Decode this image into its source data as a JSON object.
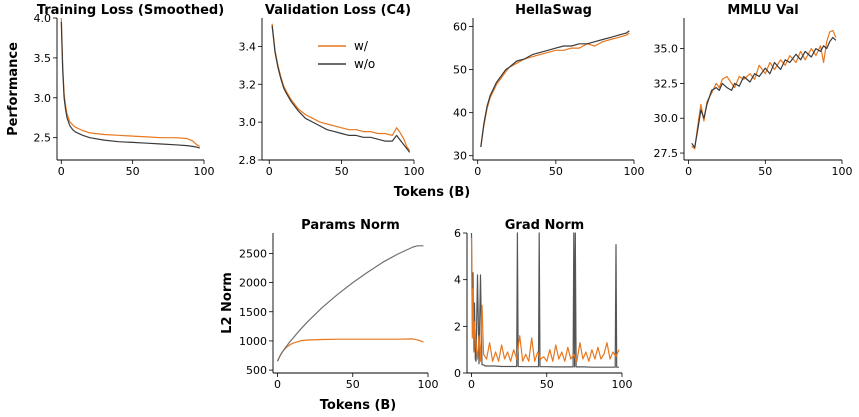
{
  "figure": {
    "xlabel_top": "Tokens (B)",
    "ylabel_top": "Performance",
    "xlabel_bottom": "Tokens (B)",
    "ylabel_bottom": "L2 Norm",
    "colors": {
      "w": "#e8771e",
      "wo": "#3a3a3a",
      "wo_light": "#707070"
    },
    "legend": {
      "location": "upper-right of Validation Loss panel",
      "entries": [
        "w/",
        "w/o"
      ]
    }
  },
  "chart_data": [
    {
      "id": "train",
      "type": "line",
      "title": "Training Loss (Smoothed)",
      "xlim": [
        -3,
        100
      ],
      "ylim": [
        2.22,
        4.0
      ],
      "xticks": [
        0,
        50,
        100
      ],
      "yticks": [
        2.5,
        3.0,
        3.5,
        4.0
      ],
      "ytick_labels": [
        "2.5",
        "3.0",
        "3.5",
        "4.0"
      ],
      "series": [
        {
          "name": "w/",
          "color": "#e8771e",
          "x": [
            0,
            1,
            2,
            3,
            4,
            6,
            8,
            10,
            15,
            20,
            30,
            40,
            50,
            60,
            70,
            80,
            88,
            92,
            95,
            97
          ],
          "values": [
            4.0,
            3.4,
            3.05,
            2.9,
            2.8,
            2.7,
            2.66,
            2.63,
            2.59,
            2.56,
            2.54,
            2.53,
            2.52,
            2.51,
            2.5,
            2.5,
            2.49,
            2.46,
            2.41,
            2.39
          ]
        },
        {
          "name": "w/o",
          "color": "#3a3a3a",
          "x": [
            0,
            1,
            2,
            3,
            4,
            6,
            8,
            10,
            15,
            20,
            30,
            40,
            50,
            60,
            70,
            80,
            88,
            92,
            95,
            97
          ],
          "values": [
            3.95,
            3.35,
            3.0,
            2.85,
            2.75,
            2.65,
            2.6,
            2.57,
            2.53,
            2.5,
            2.47,
            2.45,
            2.44,
            2.43,
            2.42,
            2.41,
            2.4,
            2.39,
            2.38,
            2.37
          ]
        }
      ]
    },
    {
      "id": "val",
      "type": "line",
      "title": "Validation Loss (C4)",
      "xlim": [
        -5,
        100
      ],
      "ylim": [
        2.8,
        3.55
      ],
      "xticks": [
        0,
        50,
        100
      ],
      "yticks": [
        2.8,
        3.0,
        3.2,
        3.4
      ],
      "ytick_labels": [
        "2.8",
        "3.0",
        "3.2",
        "3.4"
      ],
      "series": [
        {
          "name": "w/",
          "color": "#e8771e",
          "x": [
            2,
            4,
            6,
            8,
            10,
            12,
            15,
            18,
            20,
            25,
            30,
            35,
            40,
            45,
            50,
            55,
            60,
            65,
            70,
            75,
            80,
            85,
            88,
            90,
            93,
            95,
            97
          ],
          "values": [
            3.52,
            3.38,
            3.3,
            3.24,
            3.19,
            3.16,
            3.12,
            3.09,
            3.07,
            3.04,
            3.02,
            3.0,
            2.99,
            2.98,
            2.97,
            2.96,
            2.96,
            2.95,
            2.95,
            2.94,
            2.94,
            2.93,
            2.97,
            2.95,
            2.91,
            2.87,
            2.85
          ]
        },
        {
          "name": "w/o",
          "color": "#3a3a3a",
          "x": [
            2,
            4,
            6,
            8,
            10,
            12,
            15,
            18,
            20,
            25,
            30,
            35,
            40,
            45,
            50,
            55,
            60,
            65,
            70,
            75,
            80,
            85,
            88,
            90,
            93,
            95,
            97
          ],
          "values": [
            3.51,
            3.37,
            3.29,
            3.23,
            3.18,
            3.15,
            3.11,
            3.08,
            3.06,
            3.02,
            3.0,
            2.98,
            2.96,
            2.95,
            2.94,
            2.93,
            2.93,
            2.92,
            2.92,
            2.91,
            2.9,
            2.9,
            2.93,
            2.91,
            2.88,
            2.86,
            2.84
          ]
        }
      ]
    },
    {
      "id": "hella",
      "type": "line",
      "title": "HellaSwag",
      "xlim": [
        -3,
        100
      ],
      "ylim": [
        29,
        62
      ],
      "xticks": [
        0,
        50,
        100
      ],
      "yticks": [
        30,
        40,
        50,
        60
      ],
      "ytick_labels": [
        "30",
        "40",
        "50",
        "60"
      ],
      "series": [
        {
          "name": "w/",
          "color": "#e8771e",
          "x": [
            2,
            4,
            6,
            8,
            10,
            12,
            15,
            18,
            20,
            25,
            30,
            35,
            40,
            45,
            50,
            55,
            60,
            65,
            70,
            75,
            80,
            85,
            90,
            95,
            97
          ],
          "values": [
            32,
            37,
            41,
            43.5,
            45,
            46.5,
            48,
            49.5,
            50.5,
            51.5,
            52.5,
            53,
            53.5,
            54,
            54.5,
            54.5,
            55,
            55,
            56,
            55.5,
            56.5,
            57,
            57.5,
            58,
            58.5
          ]
        },
        {
          "name": "w/o",
          "color": "#3a3a3a",
          "x": [
            2,
            4,
            6,
            8,
            10,
            12,
            15,
            18,
            20,
            25,
            30,
            35,
            40,
            45,
            50,
            55,
            60,
            65,
            70,
            75,
            80,
            85,
            90,
            95,
            97
          ],
          "values": [
            32,
            37.5,
            41.5,
            44,
            45.5,
            47,
            48.5,
            50,
            50.5,
            52,
            52.5,
            53.5,
            54,
            54.5,
            55,
            55.5,
            55.5,
            56,
            56,
            56.5,
            57,
            57.5,
            58,
            58.5,
            59
          ]
        }
      ]
    },
    {
      "id": "mmlu",
      "type": "line",
      "title": "MMLU Val",
      "xlim": [
        -3,
        100
      ],
      "ylim": [
        27,
        37.2
      ],
      "xticks": [
        0,
        50,
        100
      ],
      "yticks": [
        27.5,
        30.0,
        32.5,
        35.0
      ],
      "ytick_labels": [
        "27.5",
        "30.0",
        "32.5",
        "35.0"
      ],
      "series": [
        {
          "name": "w/",
          "color": "#e8771e",
          "x": [
            2,
            4,
            6,
            8,
            10,
            12,
            15,
            18,
            20,
            22,
            25,
            28,
            30,
            33,
            36,
            40,
            43,
            46,
            50,
            53,
            56,
            60,
            63,
            66,
            70,
            73,
            76,
            80,
            83,
            86,
            88,
            90,
            92,
            94,
            96
          ],
          "values": [
            28.0,
            27.8,
            29.5,
            31.0,
            29.8,
            31.2,
            31.8,
            32.5,
            32.2,
            32.8,
            33.0,
            32.5,
            32.2,
            33.0,
            32.8,
            33.2,
            32.8,
            33.8,
            33.2,
            34.0,
            33.5,
            34.2,
            33.8,
            34.5,
            34.0,
            34.8,
            34.2,
            35.0,
            34.5,
            35.2,
            34.0,
            35.5,
            36.2,
            36.3,
            35.8
          ]
        },
        {
          "name": "w/o",
          "color": "#3a3a3a",
          "x": [
            2,
            4,
            6,
            8,
            10,
            12,
            15,
            18,
            20,
            22,
            25,
            28,
            30,
            33,
            36,
            40,
            43,
            46,
            50,
            53,
            56,
            60,
            63,
            66,
            70,
            73,
            76,
            80,
            83,
            86,
            88,
            90,
            92,
            94,
            96
          ],
          "values": [
            28.2,
            27.9,
            29.2,
            30.6,
            30.0,
            31.0,
            32.0,
            32.2,
            32.0,
            32.5,
            32.2,
            32.0,
            32.5,
            32.3,
            33.0,
            32.6,
            33.2,
            33.0,
            33.6,
            33.2,
            34.0,
            33.5,
            34.2,
            34.0,
            34.6,
            34.2,
            34.8,
            34.4,
            35.0,
            34.8,
            35.2,
            35.0,
            35.5,
            35.8,
            35.6
          ]
        }
      ]
    },
    {
      "id": "params",
      "type": "line",
      "title": "Params Norm",
      "xlim": [
        -3,
        100
      ],
      "ylim": [
        450,
        2850
      ],
      "xticks": [
        0,
        50,
        100
      ],
      "yticks": [
        500,
        1000,
        1500,
        2000,
        2500
      ],
      "ytick_labels": [
        "500",
        "1000",
        "1500",
        "2000",
        "2500"
      ],
      "series": [
        {
          "name": "w/",
          "color": "#e8771e",
          "x": [
            0,
            2,
            4,
            6,
            8,
            10,
            15,
            20,
            30,
            40,
            50,
            60,
            70,
            80,
            90,
            94,
            97
          ],
          "values": [
            650,
            760,
            840,
            890,
            930,
            960,
            1000,
            1015,
            1025,
            1030,
            1030,
            1030,
            1030,
            1030,
            1035,
            1010,
            980
          ]
        },
        {
          "name": "w/o",
          "color": "#707070",
          "x": [
            0,
            2,
            4,
            6,
            8,
            10,
            15,
            20,
            30,
            40,
            50,
            60,
            70,
            80,
            90,
            93,
            97
          ],
          "values": [
            650,
            760,
            840,
            910,
            980,
            1040,
            1190,
            1330,
            1580,
            1800,
            2000,
            2180,
            2350,
            2490,
            2610,
            2630,
            2630
          ]
        }
      ]
    },
    {
      "id": "grad",
      "type": "line",
      "title": "Grad Norm",
      "xlim": [
        -3,
        100
      ],
      "ylim": [
        0,
        6
      ],
      "xticks": [
        0,
        50,
        100
      ],
      "yticks": [
        0,
        2,
        4,
        6
      ],
      "ytick_labels": [
        "0",
        "2",
        "4",
        "6"
      ],
      "series": [
        {
          "name": "w/o",
          "color": "#555555",
          "x": [
            0,
            0.5,
            1,
            1.5,
            2,
            2.5,
            3,
            4,
            5,
            6,
            7,
            8,
            9,
            10,
            15,
            20,
            25,
            30,
            30.5,
            31,
            35,
            40,
            44.5,
            45,
            45.5,
            50,
            55,
            60,
            67.5,
            68,
            68.5,
            69,
            69.5,
            70,
            75,
            80,
            85,
            90,
            95.5,
            96,
            96.5,
            98
          ],
          "values": [
            6,
            2.5,
            4.3,
            1.0,
            3.0,
            0.6,
            0.5,
            4.2,
            0.4,
            4.2,
            0.35,
            0.35,
            0.3,
            0.3,
            0.3,
            0.28,
            0.28,
            0.28,
            6.0,
            0.28,
            0.27,
            0.27,
            0.27,
            6.0,
            0.27,
            0.27,
            0.26,
            0.26,
            0.26,
            6.0,
            0.26,
            6.0,
            0.26,
            0.26,
            0.26,
            0.25,
            0.25,
            0.25,
            0.25,
            5.5,
            0.25,
            0.25
          ]
        },
        {
          "name": "w/",
          "color": "#e8771e",
          "x": [
            0,
            0.5,
            1,
            1.5,
            2,
            3,
            4,
            5,
            6,
            7,
            8,
            10,
            12,
            14,
            16,
            18,
            20,
            22,
            24,
            26,
            28,
            30,
            32,
            34,
            36,
            38,
            40,
            42,
            44,
            46,
            48,
            50,
            52,
            54,
            56,
            58,
            60,
            62,
            64,
            66,
            68,
            70,
            72,
            74,
            76,
            78,
            80,
            82,
            84,
            86,
            88,
            90,
            92,
            94,
            96,
            98
          ],
          "values": [
            5.8,
            1.5,
            3.6,
            0.9,
            2.2,
            1.2,
            0.6,
            1.6,
            0.5,
            2.9,
            0.8,
            0.6,
            1.3,
            0.5,
            0.9,
            0.5,
            1.2,
            0.6,
            0.9,
            0.5,
            1.0,
            0.6,
            1.6,
            0.5,
            0.8,
            0.5,
            1.5,
            0.5,
            0.9,
            0.6,
            0.7,
            0.5,
            1.0,
            0.5,
            1.2,
            0.6,
            0.9,
            0.5,
            1.1,
            0.6,
            0.8,
            0.5,
            1.3,
            0.6,
            0.9,
            0.5,
            1.0,
            0.6,
            1.1,
            0.6,
            0.8,
            1.3,
            0.6,
            0.9,
            0.7,
            1.0
          ]
        }
      ]
    }
  ]
}
